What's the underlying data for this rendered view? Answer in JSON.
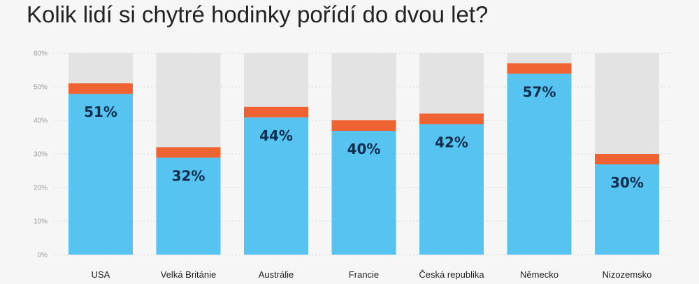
{
  "title": "Kolik lidí si chytré hodinky pořídí do dvou let?",
  "colors": {
    "background": "#f6f6f6",
    "track": "#e3e3e3",
    "value": "#57c3f0",
    "cap": "#ee6331",
    "grid": "#d6d6d6",
    "tick": "#9a9a9a",
    "label": "#0e2f4f"
  },
  "chart_data": {
    "type": "bar",
    "categories": [
      "USA",
      "Velká Británie",
      "Austrálie",
      "Francie",
      "Česká republika",
      "Německo",
      "Nizozemsko"
    ],
    "values": [
      51,
      32,
      44,
      40,
      42,
      57,
      30
    ],
    "value_labels": [
      "51%",
      "32%",
      "44%",
      "40%",
      "42%",
      "57%",
      "30%"
    ],
    "ylim": [
      0,
      60
    ],
    "yticks": [
      0,
      10,
      20,
      30,
      40,
      50,
      60
    ],
    "ytick_labels": [
      "0%",
      "10%",
      "20%",
      "30%",
      "40%",
      "50%",
      "60%"
    ],
    "grid": true,
    "xlabel": "",
    "ylabel": ""
  }
}
